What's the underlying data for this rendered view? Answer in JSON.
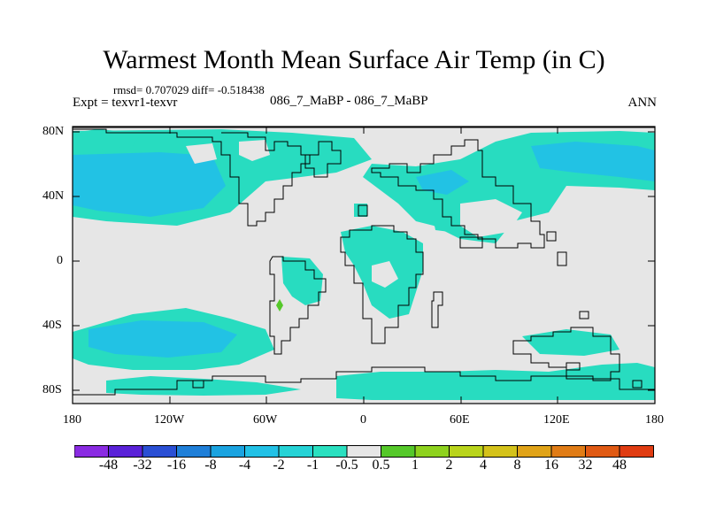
{
  "title": "Warmest Month Mean Surface Air Temp (in C)",
  "stats": "rmsd= 0.707029 diff= -0.518438",
  "experiment": "Expt = texvr1-texvr",
  "comparison": "086_7_MaBP - 086_7_MaBP",
  "period": "ANN",
  "y_ticks": [
    "80N",
    "40N",
    "0",
    "40S",
    "80S"
  ],
  "x_ticks": [
    "180",
    "120W",
    "60W",
    "0",
    "60E",
    "120E",
    "180"
  ],
  "colorbar": {
    "labels": [
      "-48",
      "-32",
      "-16",
      "-8",
      "-4",
      "-2",
      "-1",
      "-0.5",
      "0.5",
      "1",
      "2",
      "4",
      "8",
      "16",
      "32",
      "48"
    ],
    "colors": [
      "#8a2be2",
      "#5a22d8",
      "#2a4fd4",
      "#1f7fd8",
      "#1aa3e0",
      "#22c1e6",
      "#26d3d6",
      "#2ae0c0",
      "#e6e6e6",
      "#55c82a",
      "#8ed21e",
      "#b9d41c",
      "#d4c21a",
      "#e0a318",
      "#e07c16",
      "#e05a14",
      "#e03c12"
    ]
  },
  "colors": {
    "background_field": "#e6e6e6",
    "negative_fill": "#28dcc0",
    "negative_fill_strong": "#22c2e4",
    "positive_fill": "#55c82a",
    "coastline": "#000000"
  }
}
